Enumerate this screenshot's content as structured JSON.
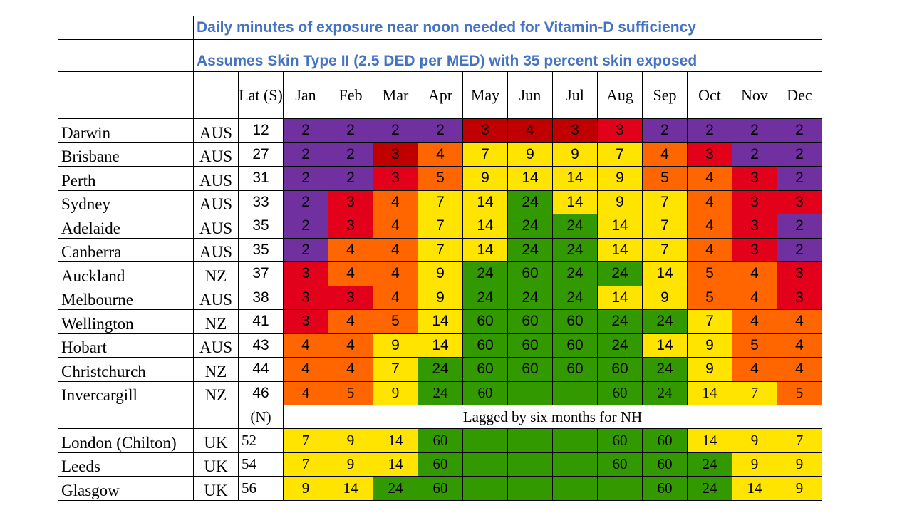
{
  "title": "Daily minutes of exposure near noon needed for Vitamin-D sufficiency",
  "subtitle": "Assumes Skin Type II  (2.5 DED per MED) with 35 percent skin exposed",
  "header": {
    "lat": "Lat (S)",
    "months": [
      "Jan",
      "Feb",
      "Mar",
      "Apr",
      "May",
      "Jun",
      "Jul",
      "Aug",
      "Sep",
      "Oct",
      "Nov",
      "Dec"
    ]
  },
  "colors": {
    "purple": "#7030A0",
    "dark_red": "#C00000",
    "red": "#E3001B",
    "orange": "#FF6600",
    "yellow": "#FFE400",
    "green": "#339900"
  },
  "southern": [
    {
      "city": "Darwin",
      "country": "AUS",
      "lat": "12",
      "values": [
        "2",
        "2",
        "2",
        "2",
        "3",
        "4",
        "3",
        "3",
        "2",
        "2",
        "2",
        "2"
      ]
    },
    {
      "city": "Brisbane",
      "country": "AUS",
      "lat": "27",
      "values": [
        "2",
        "2",
        "3",
        "4",
        "7",
        "9",
        "9",
        "7",
        "4",
        "3",
        "2",
        "2"
      ]
    },
    {
      "city": "Perth",
      "country": "AUS",
      "lat": "31",
      "values": [
        "2",
        "2",
        "3",
        "5",
        "9",
        "14",
        "14",
        "9",
        "5",
        "4",
        "3",
        "2"
      ]
    },
    {
      "city": "Sydney",
      "country": "AUS",
      "lat": "33",
      "values": [
        "2",
        "3",
        "4",
        "7",
        "14",
        "24",
        "14",
        "9",
        "7",
        "4",
        "3",
        "3"
      ]
    },
    {
      "city": "Adelaide",
      "country": "AUS",
      "lat": "35",
      "values": [
        "2",
        "3",
        "4",
        "7",
        "14",
        "24",
        "24",
        "14",
        "7",
        "4",
        "3",
        "2"
      ]
    },
    {
      "city": "Canberra",
      "country": "AUS",
      "lat": "35",
      "values": [
        "2",
        "4",
        "4",
        "7",
        "14",
        "24",
        "24",
        "14",
        "7",
        "4",
        "3",
        "2"
      ]
    },
    {
      "city": "Auckland",
      "country": "NZ",
      "lat": "37",
      "values": [
        "3",
        "4",
        "4",
        "9",
        "24",
        "60",
        "24",
        "24",
        "14",
        "5",
        "4",
        "3"
      ]
    },
    {
      "city": "Melbourne",
      "country": "AUS",
      "lat": "38",
      "values": [
        "3",
        "3",
        "4",
        "9",
        "24",
        "24",
        "24",
        "14",
        "9",
        "5",
        "4",
        "3"
      ]
    },
    {
      "city": "Wellington",
      "country": "NZ",
      "lat": "41",
      "values": [
        "3",
        "4",
        "5",
        "14",
        "60",
        "60",
        "60",
        "24",
        "24",
        "7",
        "4",
        "4"
      ]
    },
    {
      "city": "Hobart",
      "country": "AUS",
      "lat": "43",
      "values": [
        "4",
        "4",
        "9",
        "14",
        "60",
        "60",
        "60",
        "24",
        "14",
        "9",
        "5",
        "4"
      ]
    },
    {
      "city": "Christchurch",
      "country": "NZ",
      "lat": "44",
      "values": [
        "4",
        "4",
        "7",
        "24",
        "60",
        "60",
        "60",
        "60",
        "24",
        "9",
        "4",
        "4"
      ]
    },
    {
      "city": "Invercargill",
      "country": "NZ",
      "lat": "46",
      "values": [
        "4",
        "5",
        "9",
        "24",
        "60",
        "",
        "",
        "60",
        "24",
        "14",
        "7",
        "5"
      ]
    }
  ],
  "separator": {
    "lat": "(N)",
    "note": "Lagged by six months for NH"
  },
  "northern": [
    {
      "city": "London (Chilton)",
      "country": "UK",
      "lat": "52",
      "values": [
        "7",
        "9",
        "14",
        "60",
        "",
        "",
        "",
        "60",
        "60",
        "14",
        "9",
        "7"
      ]
    },
    {
      "city": "Leeds",
      "country": "UK",
      "lat": "54",
      "values": [
        "7",
        "9",
        "14",
        "60",
        "",
        "",
        "",
        "60",
        "60",
        "24",
        "9",
        "9"
      ]
    },
    {
      "city": "Glasgow",
      "country": "UK",
      "lat": "56",
      "values": [
        "9",
        "14",
        "24",
        "60",
        "",
        "",
        "",
        "",
        "60",
        "24",
        "14",
        "9"
      ]
    }
  ],
  "chart_data": {
    "type": "heatmap",
    "title": "Daily minutes of exposure near noon needed for Vitamin-D sufficiency",
    "subtitle": "Assumes Skin Type II  (2.5 DED per MED) with 35 percent skin exposed",
    "columns": [
      "Jan",
      "Feb",
      "Mar",
      "Apr",
      "May",
      "Jun",
      "Jul",
      "Aug",
      "Sep",
      "Oct",
      "Nov",
      "Dec"
    ],
    "rows": [
      "Darwin",
      "Brisbane",
      "Perth",
      "Sydney",
      "Adelaide",
      "Canberra",
      "Auckland",
      "Melbourne",
      "Wellington",
      "Hobart",
      "Christchurch",
      "Invercargill",
      "London (Chilton)",
      "Leeds",
      "Glasgow"
    ],
    "values": [
      [
        2,
        2,
        2,
        2,
        3,
        4,
        3,
        3,
        2,
        2,
        2,
        2
      ],
      [
        2,
        2,
        3,
        4,
        7,
        9,
        9,
        7,
        4,
        3,
        2,
        2
      ],
      [
        2,
        2,
        3,
        5,
        9,
        14,
        14,
        9,
        5,
        4,
        3,
        2
      ],
      [
        2,
        3,
        4,
        7,
        14,
        24,
        14,
        9,
        7,
        4,
        3,
        3
      ],
      [
        2,
        3,
        4,
        7,
        14,
        24,
        24,
        14,
        7,
        4,
        3,
        2
      ],
      [
        2,
        4,
        4,
        7,
        14,
        24,
        24,
        14,
        7,
        4,
        3,
        2
      ],
      [
        3,
        4,
        4,
        9,
        24,
        60,
        24,
        24,
        14,
        5,
        4,
        3
      ],
      [
        3,
        3,
        4,
        9,
        24,
        24,
        24,
        14,
        9,
        5,
        4,
        3
      ],
      [
        3,
        4,
        5,
        14,
        60,
        60,
        60,
        24,
        24,
        7,
        4,
        4
      ],
      [
        4,
        4,
        9,
        14,
        60,
        60,
        60,
        24,
        14,
        9,
        5,
        4
      ],
      [
        4,
        4,
        7,
        24,
        60,
        60,
        60,
        60,
        24,
        9,
        4,
        4
      ],
      [
        4,
        5,
        9,
        24,
        60,
        null,
        null,
        60,
        24,
        14,
        7,
        5
      ],
      [
        7,
        9,
        14,
        60,
        null,
        null,
        null,
        60,
        60,
        14,
        9,
        7
      ],
      [
        7,
        9,
        14,
        60,
        null,
        null,
        null,
        60,
        60,
        24,
        9,
        9
      ],
      [
        9,
        14,
        24,
        60,
        null,
        null,
        null,
        null,
        60,
        24,
        14,
        9
      ]
    ],
    "color_scale": {
      "2": "#7030A0",
      "3": "#E3001B",
      "4": "#FF6600",
      "5": "#FF6600",
      "7": "#FFE400",
      "9": "#FFE400",
      "14": "#FFE400",
      "24": "#339900",
      "60": "#339900",
      "blank": "#339900"
    }
  }
}
